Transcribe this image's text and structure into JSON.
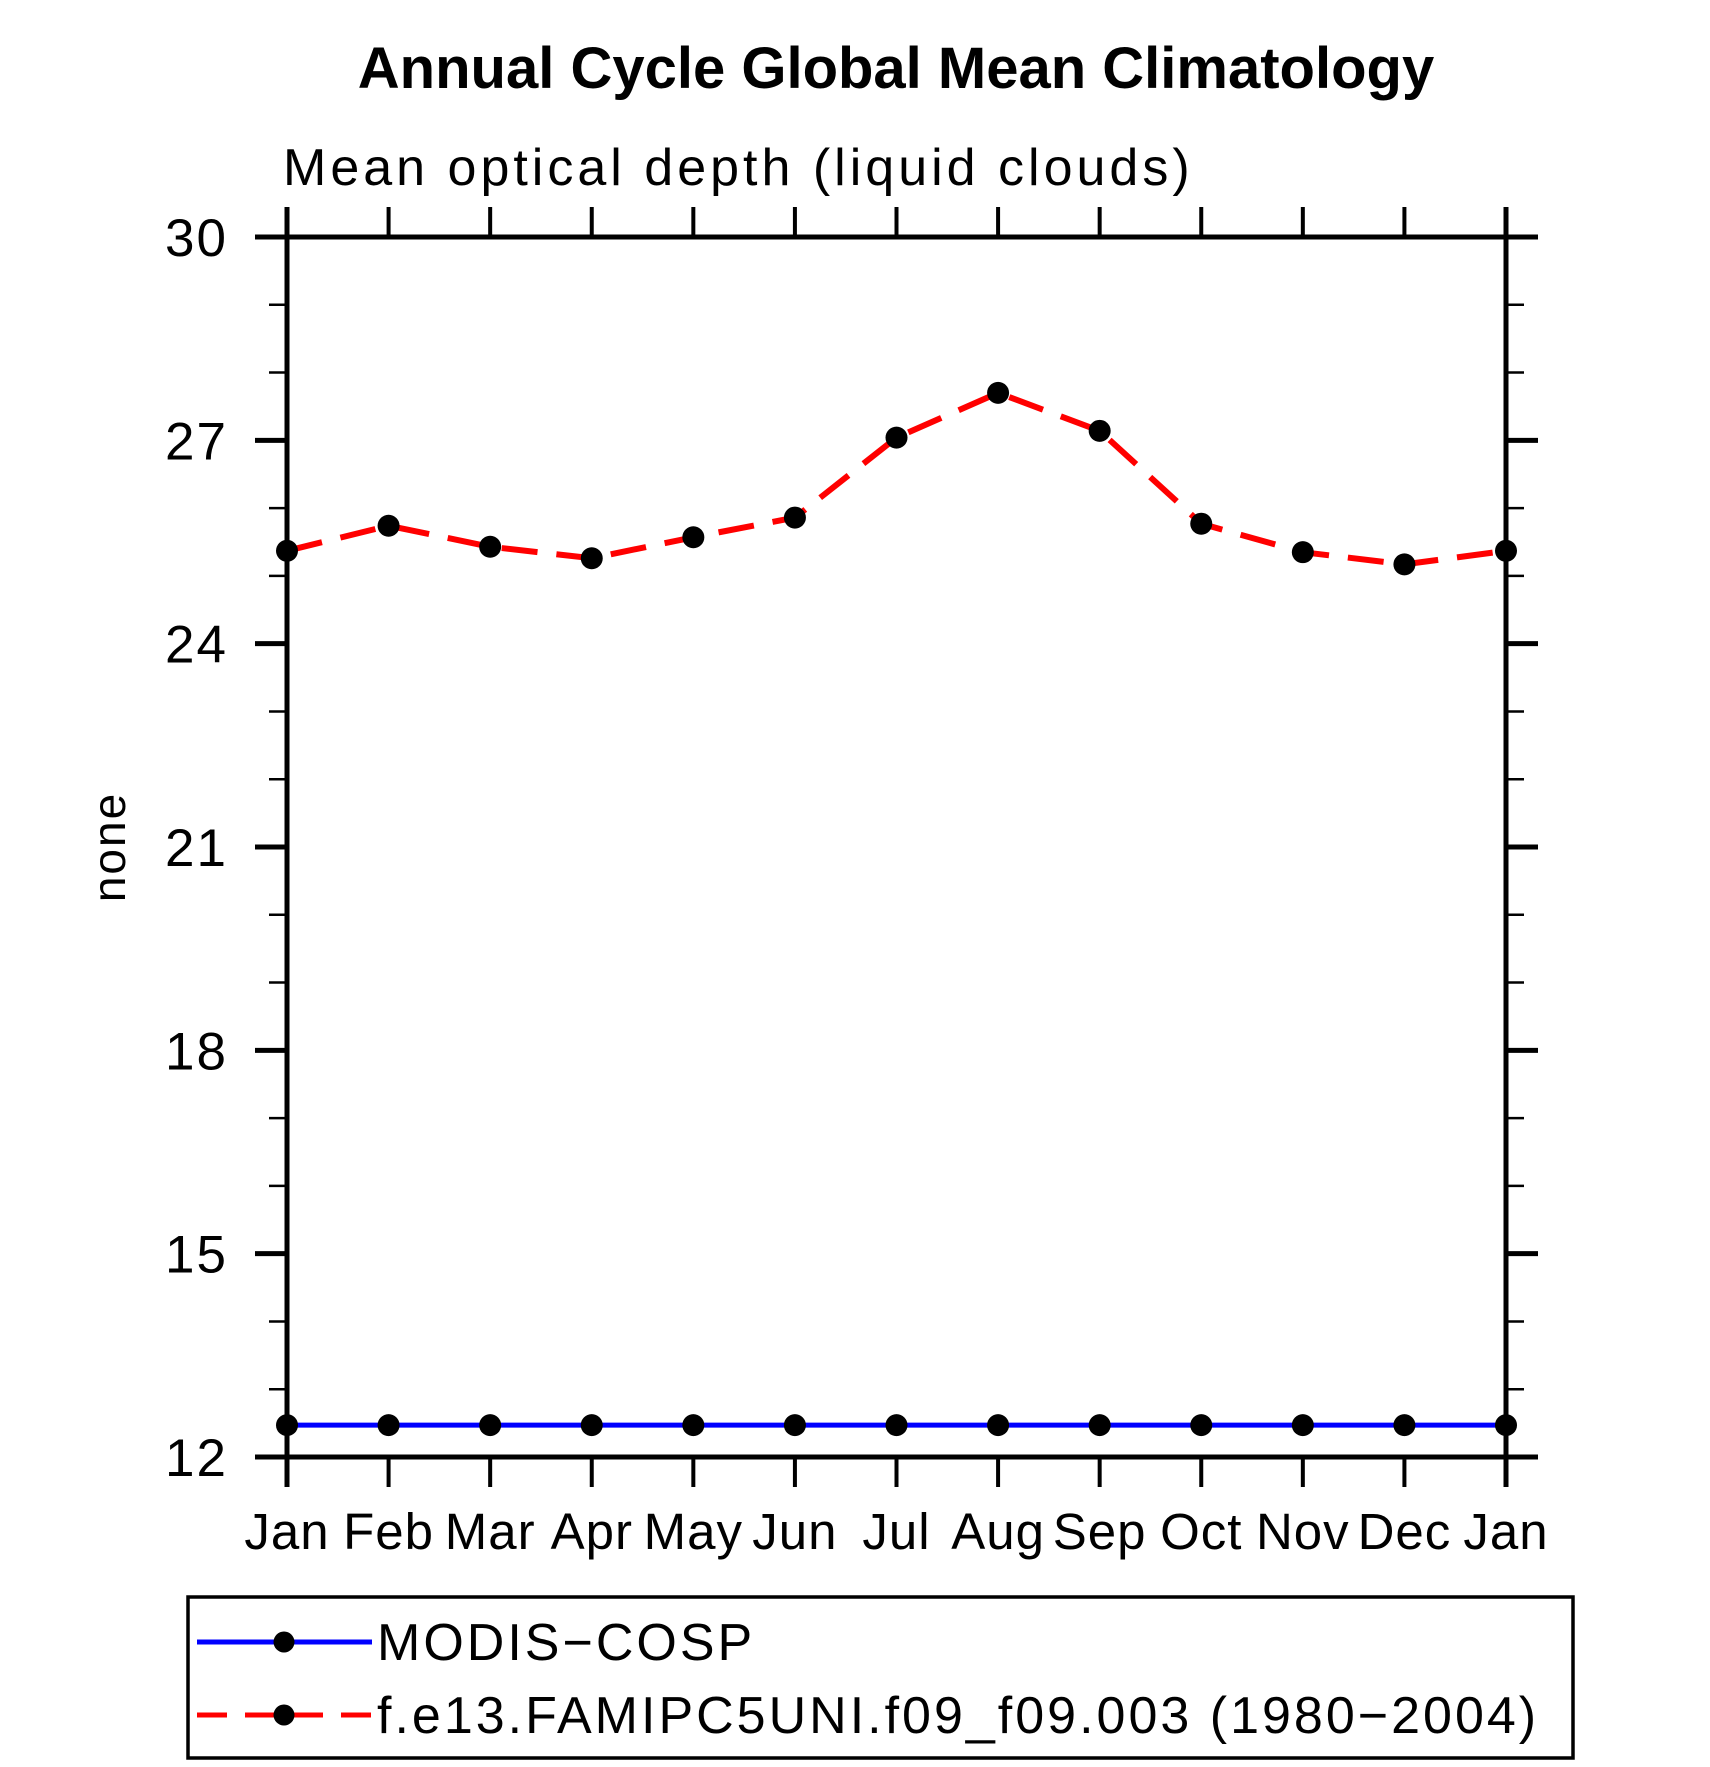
{
  "title": "Annual Cycle Global Mean Climatology",
  "subtitle": "Mean optical depth (liquid clouds)",
  "y_axis_label": "none",
  "colors": {
    "observation_line": "#0000ff",
    "model_line": "#ff0000",
    "marker": "#000000",
    "axis": "#000000",
    "background": "#ffffff"
  },
  "legend": {
    "entries": [
      {
        "label": "MODIS−COSP",
        "line_style": "solid",
        "color": "#0000ff"
      },
      {
        "label": "f.e13.FAMIPC5UNI.f09_f09.003 (1980−2004)",
        "line_style": "dashed",
        "color": "#ff0000"
      }
    ]
  },
  "chart_data": {
    "type": "line",
    "title": "Mean optical depth (liquid clouds)",
    "suptitle": "Annual Cycle Global Mean Climatology",
    "xlabel": "",
    "ylabel": "none",
    "categories": [
      "Jan",
      "Feb",
      "Mar",
      "Apr",
      "May",
      "Jun",
      "Jul",
      "Aug",
      "Sep",
      "Oct",
      "Nov",
      "Dec",
      "Jan"
    ],
    "series": [
      {
        "name": "MODIS−COSP",
        "color": "#0000ff",
        "style": "solid",
        "marker": "circle",
        "values": [
          12.47,
          12.47,
          12.47,
          12.47,
          12.47,
          12.47,
          12.47,
          12.47,
          12.47,
          12.47,
          12.47,
          12.47,
          12.47
        ]
      },
      {
        "name": "f.e13.FAMIPC5UNI.f09_f09.003 (1980−2004)",
        "color": "#ff0000",
        "style": "dashed",
        "marker": "circle",
        "values": [
          25.37,
          25.74,
          25.43,
          25.26,
          25.57,
          25.86,
          27.04,
          27.7,
          27.14,
          25.77,
          25.35,
          25.17,
          25.37
        ]
      }
    ],
    "ylim": [
      12,
      30
    ],
    "y_major_ticks": [
      12,
      15,
      18,
      21,
      24,
      27,
      30
    ],
    "y_minor_tick_interval": 1,
    "grid": false,
    "legend_position": "bottom"
  }
}
